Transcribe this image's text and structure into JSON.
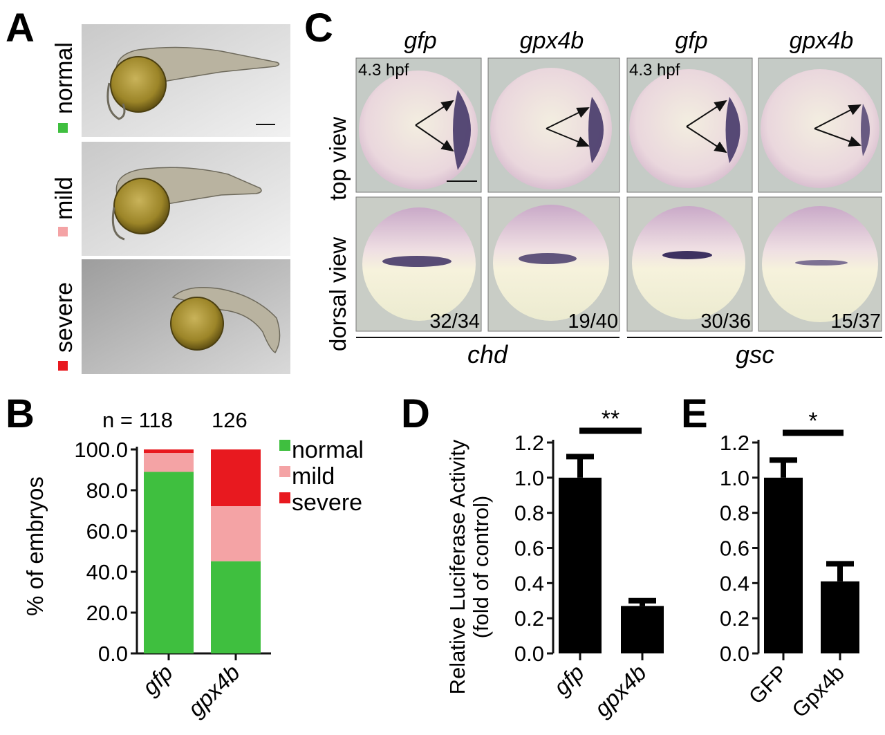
{
  "panels": {
    "A": {
      "letter": "A",
      "rows": [
        {
          "label": "normal",
          "color": "#3fbf3f"
        },
        {
          "label": "mild",
          "color": "#f4a3a5"
        },
        {
          "label": "severe",
          "color": "#e8191f"
        }
      ]
    },
    "B": {
      "letter": "B",
      "n_prefix": "n = ",
      "n_values": [
        "118",
        "126"
      ]
    },
    "C": {
      "letter": "C",
      "col_labels": [
        "gfp",
        "gpx4b",
        "gfp",
        "gpx4b"
      ],
      "row_labels": [
        "top view",
        "dorsal view"
      ],
      "stage_labels": [
        "4.3 hpf",
        "4.3 hpf"
      ],
      "counts": [
        "32/34",
        "19/40",
        "30/36",
        "15/37"
      ],
      "gene_labels": [
        "chd",
        "gsc"
      ]
    },
    "D": {
      "letter": "D",
      "significance": "**"
    },
    "E": {
      "letter": "E",
      "significance": "*"
    }
  },
  "chart_data": [
    {
      "panel": "B",
      "type": "bar",
      "stacked": true,
      "categories": [
        "gfp",
        "gpx4b"
      ],
      "series": [
        {
          "name": "normal",
          "color": "#3fbf3f",
          "values": [
            89.0,
            45.2
          ]
        },
        {
          "name": "mild",
          "color": "#f4a3a5",
          "values": [
            9.3,
            27.0
          ]
        },
        {
          "name": "severe",
          "color": "#e8191f",
          "values": [
            1.7,
            27.8
          ]
        }
      ],
      "ylabel": "% of embryos",
      "yticks": [
        "0.0",
        "20.0",
        "40.0",
        "60.0",
        "80.0",
        "100.0"
      ],
      "ylim": [
        0,
        100
      ],
      "legend": "right"
    },
    {
      "panel": "D",
      "type": "bar",
      "categories": [
        "gfp",
        "gpx4b"
      ],
      "values": [
        1.0,
        0.27
      ],
      "errors": [
        0.12,
        0.03
      ],
      "ylabel": "Relative Luciferase Activity (fold of control)",
      "yticks": [
        "0.0",
        "0.2",
        "0.4",
        "0.6",
        "0.8",
        "1.0",
        "1.2"
      ],
      "ylim": [
        0,
        1.2
      ]
    },
    {
      "panel": "E",
      "type": "bar",
      "categories": [
        "GFP",
        "Gpx4b"
      ],
      "values": [
        1.0,
        0.41
      ],
      "errors": [
        0.1,
        0.1
      ],
      "ylabel": "",
      "yticks": [
        "0.0",
        "0.2",
        "0.4",
        "0.6",
        "0.8",
        "1.0",
        "1.2"
      ],
      "ylim": [
        0,
        1.2
      ]
    }
  ]
}
